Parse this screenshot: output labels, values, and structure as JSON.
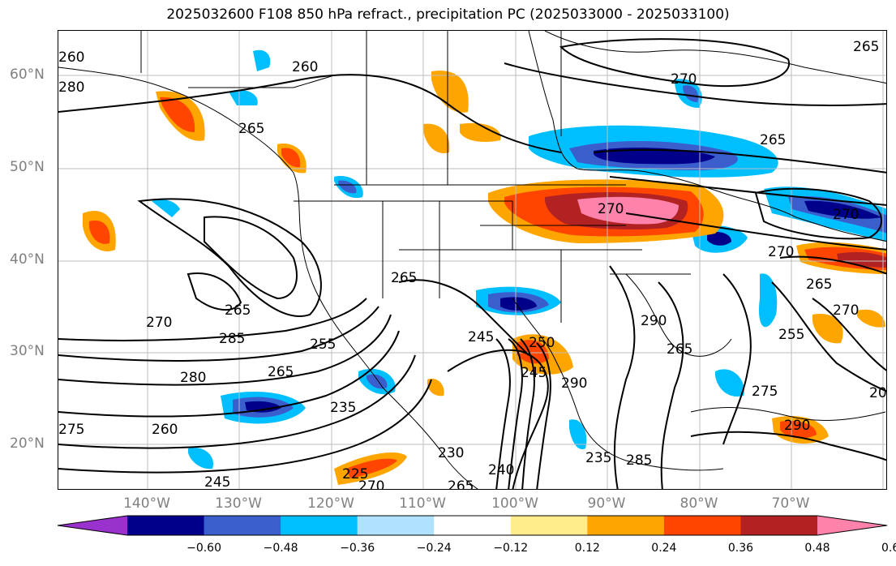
{
  "title": "2025032600 F108 850 hPa refract., precipitation PC (2025033000 - 2025033100)",
  "lat_labels": [
    "60°N",
    "50°N",
    "40°N",
    "30°N",
    "20°N"
  ],
  "lon_labels": [
    "140°W",
    "130°W",
    "120°W",
    "110°W",
    "100°W",
    "90°W",
    "80°W",
    "70°W"
  ],
  "colorbar": {
    "ticks": [
      "−0.60",
      "−0.48",
      "−0.36",
      "−0.24",
      "−0.12",
      "0.12",
      "0.24",
      "0.36",
      "0.48",
      "0.60"
    ],
    "colors": [
      "#9932cc",
      "#00008b",
      "#3a5fcd",
      "#00bfff",
      "#b0e2ff",
      "#ffffff",
      "#ffec8b",
      "#ffa500",
      "#ff4500",
      "#b22222",
      "#ff82ab"
    ]
  },
  "contour_labels": [
    "260",
    "260",
    "265",
    "265",
    "265",
    "270",
    "270",
    "270",
    "270",
    "265",
    "270",
    "265",
    "255",
    "265",
    "270",
    "285",
    "280",
    "265",
    "255",
    "245",
    "235",
    "230",
    "245",
    "250",
    "265",
    "275",
    "260",
    "245",
    "290",
    "265",
    "290",
    "225",
    "270",
    "235",
    "240",
    "285",
    "275",
    "290",
    "20",
    "280"
  ]
}
